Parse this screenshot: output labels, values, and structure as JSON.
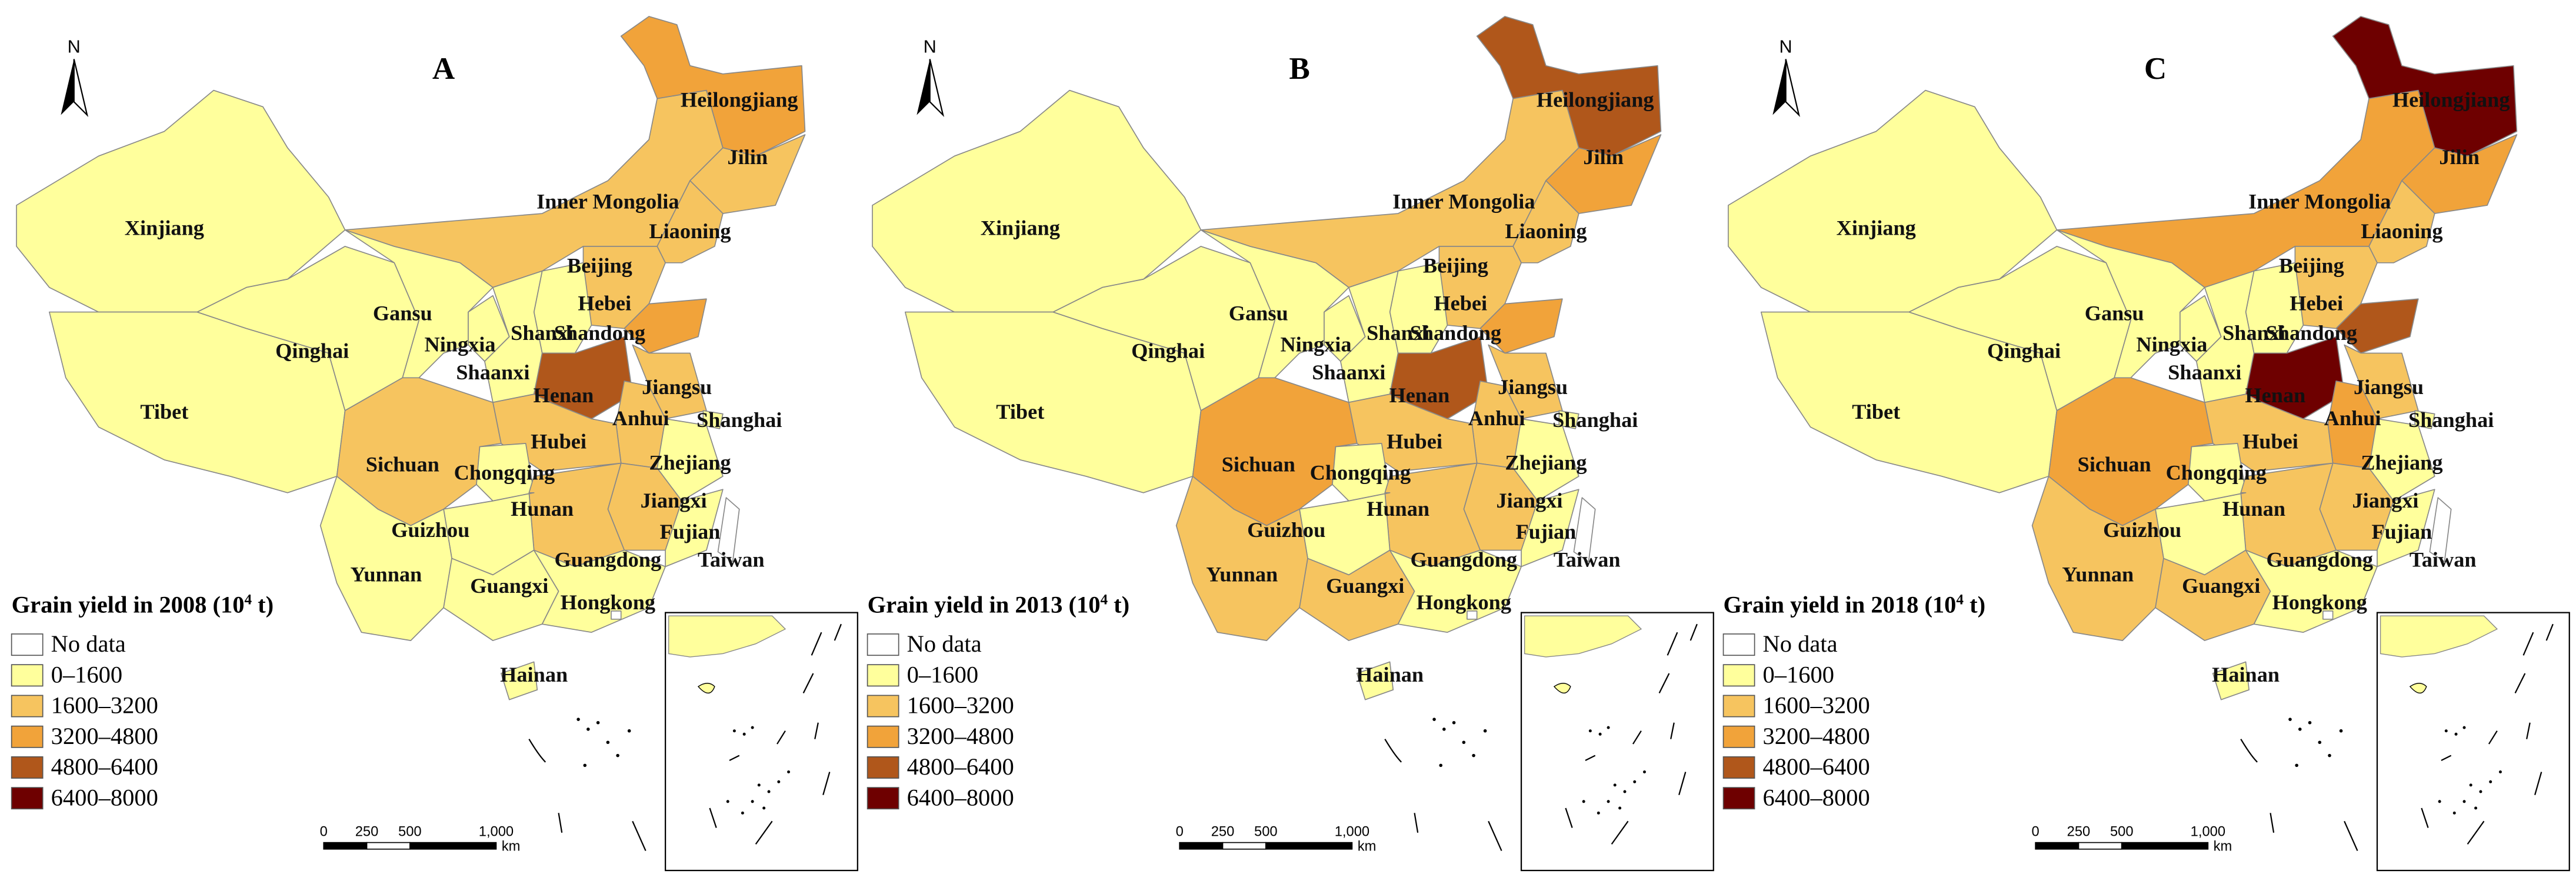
{
  "legend_classes": [
    {
      "label": "No data",
      "color": "#ffffff"
    },
    {
      "label": "0–1600",
      "color": "#ffff9c"
    },
    {
      "label": "1600–3200",
      "color": "#f6c45f"
    },
    {
      "label": "3200–4800",
      "color": "#f1a33a"
    },
    {
      "label": "4800–6400",
      "color": "#b0571b"
    },
    {
      "label": "6400–8000",
      "color": "#6e0000"
    }
  ],
  "provinces": [
    "Xinjiang",
    "Tibet",
    "Qinghai",
    "Gansu",
    "Inner Mongolia",
    "Heilongjiang",
    "Jilin",
    "Liaoning",
    "Beijing",
    "Hebei",
    "Shanxi",
    "Ningxia",
    "Shaanxi",
    "Shandong",
    "Henan",
    "Jiangsu",
    "Anhui",
    "Shanghai",
    "Hubei",
    "Sichuan",
    "Chongqing",
    "Zhejiang",
    "Jiangxi",
    "Hunan",
    "Guizhou",
    "Fujian",
    "Yunnan",
    "Guangxi",
    "Guangdong",
    "Hainan",
    "Taiwan",
    "Hongkong"
  ],
  "north_label": "N",
  "scale_bar": {
    "ticks": [
      0,
      250,
      500,
      {
        "value": 1000,
        "label": "1,000"
      }
    ],
    "unit": "km"
  },
  "panels": [
    {
      "letter": "A",
      "legend_title_prefix": "Grain yield in 2008 (10",
      "legend_title_exp": "4",
      "legend_title_suffix": " t)",
      "classes": [
        1,
        1,
        1,
        1,
        2,
        3,
        2,
        2,
        1,
        2,
        1,
        1,
        1,
        3,
        4,
        2,
        2,
        1,
        2,
        2,
        1,
        1,
        2,
        2,
        1,
        1,
        1,
        1,
        1,
        1,
        0,
        0
      ]
    },
    {
      "letter": "B",
      "legend_title_prefix": "Grain yield in 2013 (10",
      "legend_title_exp": "4",
      "legend_title_suffix": " t)",
      "classes": [
        1,
        1,
        1,
        1,
        2,
        4,
        3,
        2,
        1,
        2,
        1,
        1,
        1,
        3,
        4,
        2,
        2,
        1,
        2,
        3,
        1,
        1,
        2,
        2,
        1,
        1,
        2,
        2,
        1,
        1,
        0,
        0
      ]
    },
    {
      "letter": "C",
      "legend_title_prefix": "Grain yield in 2018 (10",
      "legend_title_exp": "4",
      "legend_title_suffix": " t)",
      "classes": [
        1,
        1,
        1,
        1,
        3,
        5,
        3,
        2,
        1,
        2,
        1,
        1,
        1,
        4,
        5,
        2,
        3,
        1,
        2,
        3,
        1,
        1,
        2,
        2,
        1,
        1,
        2,
        2,
        1,
        1,
        0,
        0
      ]
    }
  ]
}
